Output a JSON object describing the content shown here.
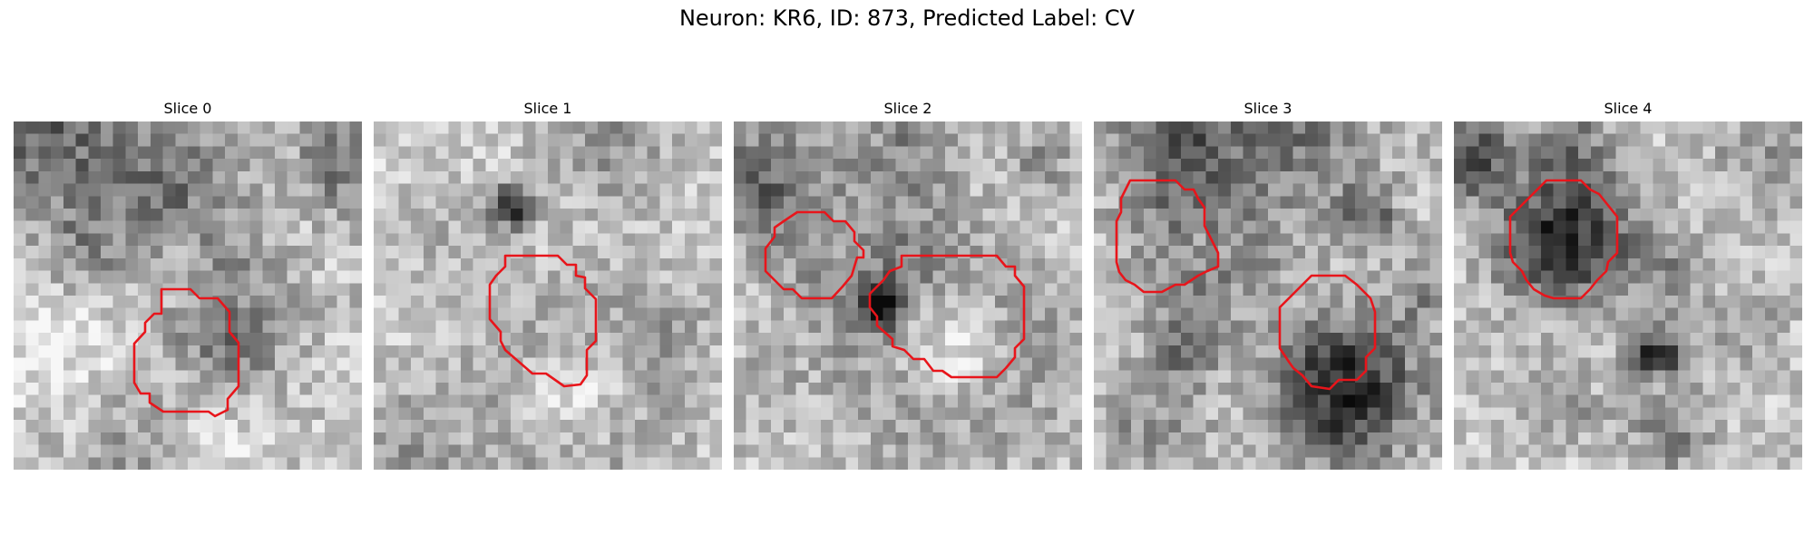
{
  "figure": {
    "title": "Neuron: KR6, ID: 873, Predicted Label: CV"
  },
  "colors": {
    "contour": "#e8151b",
    "background": "#ffffff",
    "text": "#000000",
    "colormap": "grayscale"
  },
  "slices": [
    {
      "title": "Slice 0"
    },
    {
      "title": "Slice 1"
    },
    {
      "title": "Slice 2"
    },
    {
      "title": "Slice 3"
    },
    {
      "title": "Slice 4"
    }
  ]
}
